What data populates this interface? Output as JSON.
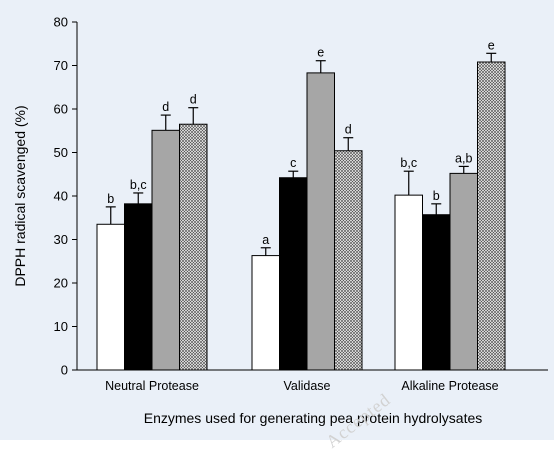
{
  "chart_data": {
    "type": "bar",
    "ylabel": "DPPH radical scavenged (%)",
    "xlabel": "Enzymes used for generating pea protein hydrolysates",
    "ylim": [
      0,
      80
    ],
    "yticks": [
      0,
      10,
      20,
      30,
      40,
      50,
      60,
      70,
      80
    ],
    "grid": false,
    "legend": "none",
    "categories": [
      "Neutral Protease",
      "Validase",
      "Alkaline Protease"
    ],
    "series": [
      {
        "fill": "#ffffff",
        "pattern": "solid",
        "values": [
          33.5,
          26.3,
          40.2
        ],
        "errors": [
          4.0,
          1.8,
          5.5
        ],
        "labels": [
          "b",
          "a",
          "b,c"
        ]
      },
      {
        "fill": "#000000",
        "pattern": "solid",
        "values": [
          38.2,
          44.2,
          35.7
        ],
        "errors": [
          2.5,
          1.5,
          2.5
        ],
        "labels": [
          "b,c",
          "c",
          "b"
        ]
      },
      {
        "fill": "#a6a6a6",
        "pattern": "solid",
        "values": [
          55.1,
          68.3,
          45.2
        ],
        "errors": [
          3.5,
          2.8,
          1.6
        ],
        "labels": [
          "d",
          "e",
          "a,b"
        ]
      },
      {
        "fill": "#ffffff",
        "pattern": "crosshatch",
        "values": [
          56.5,
          50.4,
          70.8
        ],
        "errors": [
          3.8,
          3.0,
          2.0
        ],
        "labels": [
          "d",
          "d",
          "e"
        ]
      }
    ]
  },
  "watermark": "Accepted"
}
